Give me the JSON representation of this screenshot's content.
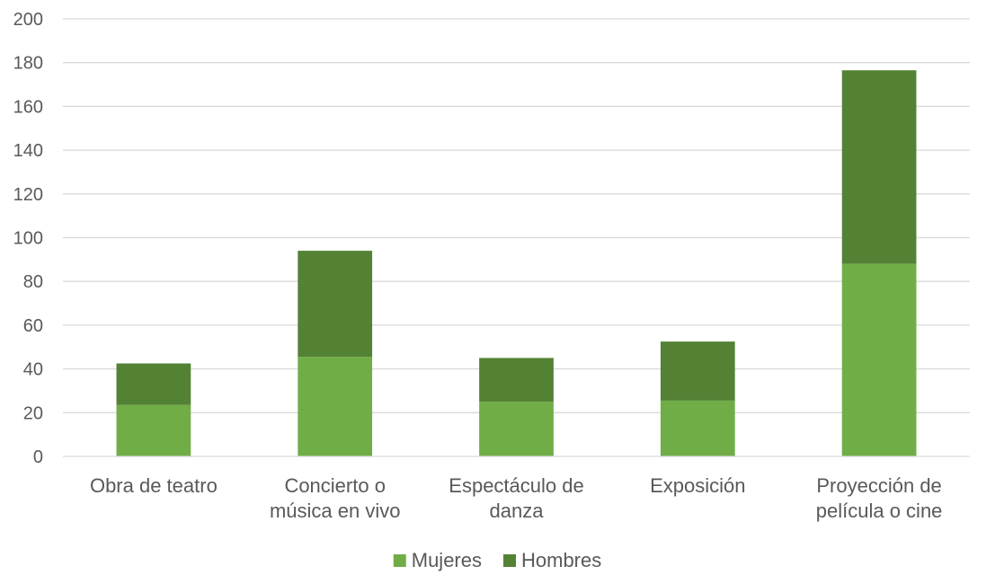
{
  "chart_data": {
    "type": "bar",
    "stacked": true,
    "categories": [
      [
        "Obra de teatro"
      ],
      [
        "Concierto o",
        "música en vivo"
      ],
      [
        "Espectáculo de",
        "danza"
      ],
      [
        "Exposición"
      ],
      [
        "Proyección de",
        "película o cine"
      ]
    ],
    "series": [
      {
        "name": "Mujeres",
        "color": "#70ad47",
        "values": [
          23.5,
          45.5,
          25,
          25.5,
          88
        ]
      },
      {
        "name": "Hombres",
        "color": "#548235",
        "values": [
          19,
          48.5,
          20,
          27,
          88.5
        ]
      }
    ],
    "title": "",
    "xlabel": "",
    "ylabel": "",
    "ylim": [
      0,
      200
    ],
    "yticks": [
      0,
      20,
      40,
      60,
      80,
      100,
      120,
      140,
      160,
      180,
      200
    ],
    "grid": true,
    "legend_position": "bottom"
  }
}
